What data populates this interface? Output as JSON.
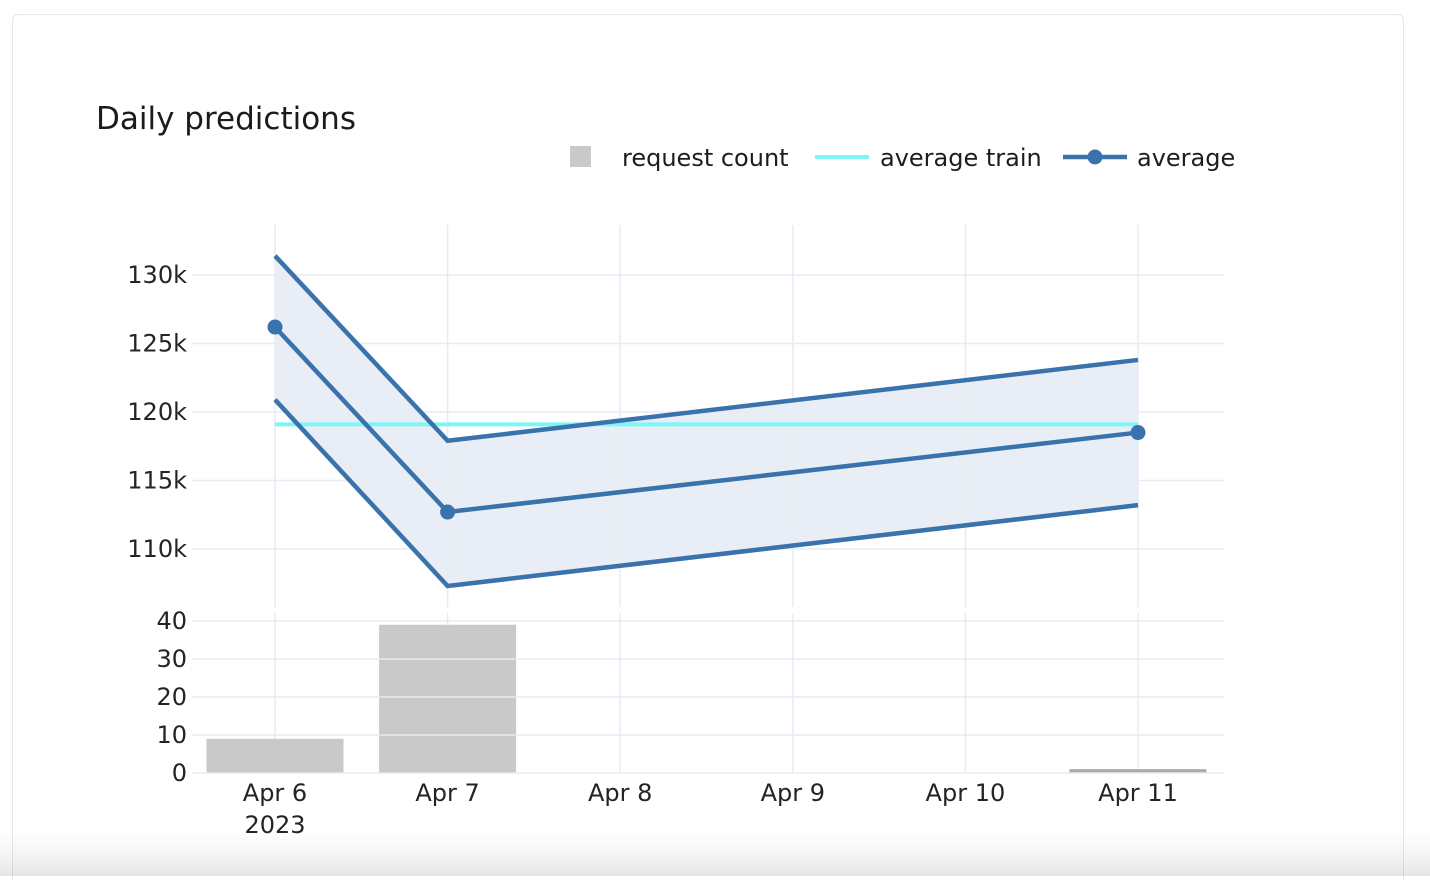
{
  "header": {
    "title": "Daily predictions"
  },
  "legend": {
    "items": [
      {
        "label": "request count",
        "swatch": "square",
        "color": "#c9c9c9"
      },
      {
        "label": "average train",
        "swatch": "line",
        "color": "#7df6f6"
      },
      {
        "label": "average",
        "swatch": "line-dot",
        "color": "#3a72ac"
      }
    ]
  },
  "colors": {
    "line_blue": "#3a72ac",
    "train_cyan": "#7df6f6",
    "band_fill": "#e9eef6",
    "bar_gray": "#c9c9c9",
    "small_bar_gray": "#aaaaaa",
    "grid": "#e7ebf3",
    "tick_text": "#242424",
    "title_text": "#1b1b1b"
  },
  "chart_data": [
    {
      "type": "line",
      "title": "Daily predictions",
      "categories": [
        "Apr 6",
        "Apr 7",
        "Apr 8",
        "Apr 9",
        "Apr 10",
        "Apr 11"
      ],
      "x_first_tick_year": "2023",
      "series": [
        {
          "name": "average train",
          "color": "#7df6f6",
          "markers": false,
          "points": [
            {
              "x": "Apr 6",
              "y": 119100
            },
            {
              "x": "Apr 11",
              "y": 119100
            }
          ]
        },
        {
          "name": "average",
          "color": "#3a72ac",
          "markers": true,
          "points": [
            {
              "x": "Apr 6",
              "y": 126200
            },
            {
              "x": "Apr 7",
              "y": 112700
            },
            {
              "x": "Apr 11",
              "y": 118500
            }
          ]
        }
      ],
      "band": {
        "fill": "#e9eef6",
        "edge_color": "#3a72ac",
        "upper": [
          {
            "x": "Apr 6",
            "y": 131400
          },
          {
            "x": "Apr 7",
            "y": 117900
          },
          {
            "x": "Apr 11",
            "y": 123800
          }
        ],
        "lower": [
          {
            "x": "Apr 6",
            "y": 120900
          },
          {
            "x": "Apr 7",
            "y": 107300
          },
          {
            "x": "Apr 11",
            "y": 113200
          }
        ]
      },
      "yticks": [
        {
          "label": "110k",
          "value": 110000
        },
        {
          "label": "115k",
          "value": 115000
        },
        {
          "label": "120k",
          "value": 120000
        },
        {
          "label": "125k",
          "value": 125000
        },
        {
          "label": "130k",
          "value": 130000
        }
      ],
      "ylim": [
        105800,
        133650
      ],
      "grid": true,
      "legend_position": "top-right"
    },
    {
      "type": "bar",
      "name": "request count",
      "color": "#c9c9c9",
      "categories": [
        "Apr 6",
        "Apr 7",
        "Apr 8",
        "Apr 9",
        "Apr 10",
        "Apr 11"
      ],
      "values": [
        9,
        39,
        0,
        0,
        0,
        1
      ],
      "yticks": [
        {
          "label": "0",
          "value": 0
        },
        {
          "label": "10",
          "value": 10
        },
        {
          "label": "20",
          "value": 20
        },
        {
          "label": "30",
          "value": 30
        },
        {
          "label": "40",
          "value": 40
        }
      ],
      "ylim": [
        0,
        42
      ],
      "grid": true
    }
  ]
}
